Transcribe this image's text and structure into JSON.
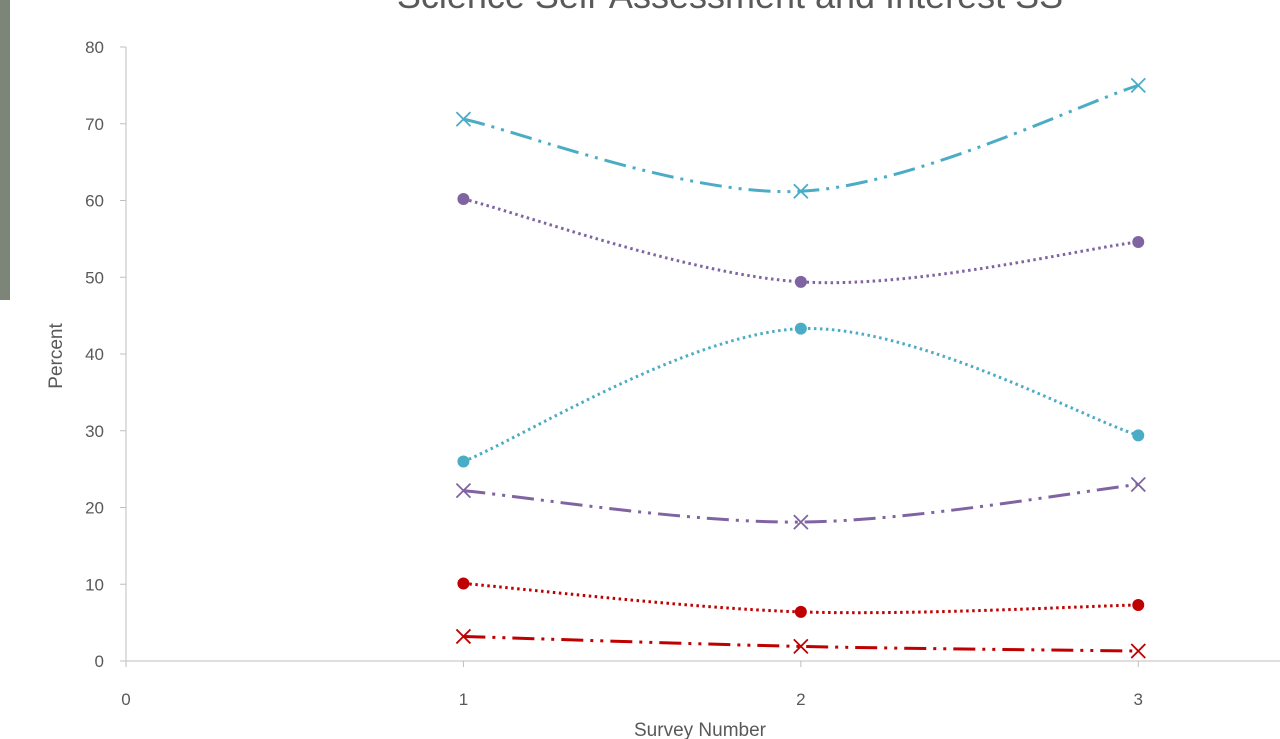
{
  "chart_data": {
    "type": "line",
    "title": "Science Self-Assessment and Interest SS",
    "x_label": "Survey Number",
    "y_label": "Percent",
    "x": [
      1,
      2,
      3
    ],
    "xlim": [
      0,
      3.42
    ],
    "xticks": [
      0,
      1,
      2,
      3
    ],
    "ylim": [
      0,
      80
    ],
    "yticks": [
      0,
      10,
      20,
      30,
      40,
      50,
      60,
      70,
      80
    ],
    "smooth": true,
    "series": [
      {
        "color": "#4bacc6",
        "marker": "x",
        "line_style": "dash-dot-dot",
        "values": [
          70.6,
          61.2,
          75.0
        ]
      },
      {
        "color": "#8064a2",
        "marker": "circle",
        "line_style": "dotted",
        "values": [
          60.2,
          49.4,
          54.6
        ]
      },
      {
        "color": "#4bacc6",
        "marker": "circle",
        "line_style": "dotted",
        "values": [
          26.0,
          43.3,
          29.4
        ]
      },
      {
        "color": "#8064a2",
        "marker": "x",
        "line_style": "dash-dot-dot",
        "values": [
          22.2,
          18.1,
          23.0
        ]
      },
      {
        "color": "#c00000",
        "marker": "circle",
        "line_style": "dotted",
        "values": [
          10.1,
          6.4,
          7.3
        ]
      },
      {
        "color": "#c00000",
        "marker": "x",
        "line_style": "dash-dot-dot",
        "values": [
          3.2,
          1.9,
          1.3
        ]
      }
    ]
  }
}
